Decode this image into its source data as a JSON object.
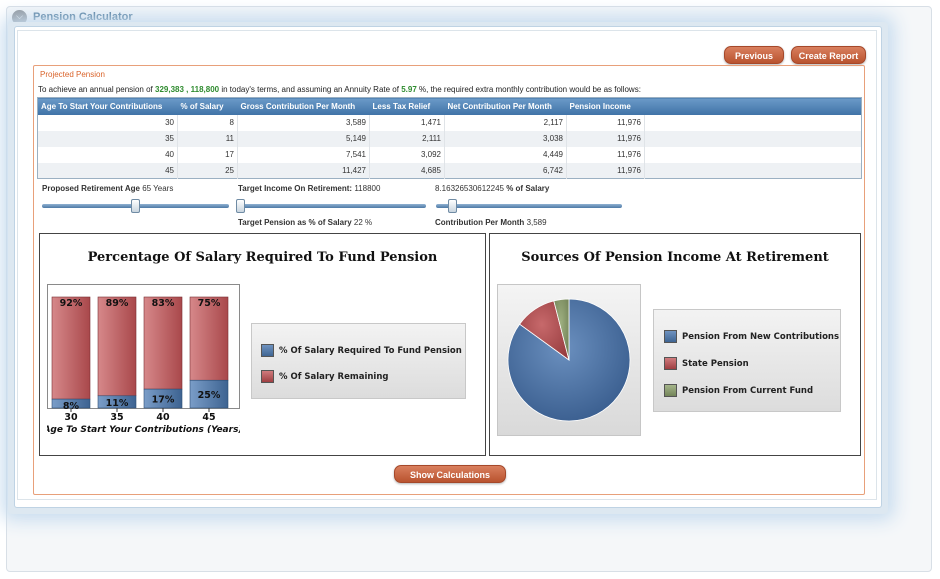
{
  "window": {
    "title": "Pension Calculator"
  },
  "buttons": {
    "previous": "Previous",
    "create_report": "Create Report",
    "show_calculations": "Show Calculations"
  },
  "section": {
    "title": "Projected Pension",
    "intro_prefix": "To achieve an annual pension of",
    "pension_value_1": "329,383",
    "pension_sep": ",",
    "pension_value_2": "118,800",
    "intro_middle": "in today's terms, and assuming an Annuity Rate of",
    "annuity_rate": "5.97",
    "intro_suffix": "%, the required extra monthly contribution would be as follows:"
  },
  "table": {
    "headers": [
      "Age To Start Your Contributions",
      "% of Salary",
      "Gross Contribution Per Month",
      "Less Tax Relief",
      "Net Contribution Per Month",
      "Pension Income"
    ],
    "rows": [
      [
        "30",
        "8",
        "3,589",
        "1,471",
        "2,117",
        "11,976"
      ],
      [
        "35",
        "11",
        "5,149",
        "2,111",
        "3,038",
        "11,976"
      ],
      [
        "40",
        "17",
        "7,541",
        "3,092",
        "4,449",
        "11,976"
      ],
      [
        "45",
        "25",
        "11,427",
        "4,685",
        "6,742",
        "11,976"
      ]
    ]
  },
  "controls": {
    "retirement_age_label": "Proposed Retirement Age",
    "retirement_age_value": "65",
    "retirement_age_unit": "Years",
    "target_income_label": "Target Income On Retirement:",
    "target_income_value": "118800",
    "salary_pct_value": "8.16326530612245",
    "salary_pct_label": "% of Salary",
    "target_pension_label": "Target Pension as % of Salary",
    "target_pension_value": "22",
    "target_pension_unit": "%",
    "contribution_label": "Contribution Per Month",
    "contribution_value": "3,589",
    "slider_retirement_fraction": 0.5,
    "slider_target_fraction": 0.0,
    "slider_contribution_fraction": 0.07
  },
  "colors": {
    "blue": "#4a6f9e",
    "red": "#b65356",
    "green": "#8a9b6d"
  },
  "bar_chart": {
    "title": "Percentage Of Salary Required To Fund Pension",
    "xlabel": "Age To Start Your Contributions (Years)",
    "legend": [
      "% Of Salary Required To Fund Pension",
      "% Of Salary Remaining"
    ]
  },
  "pie_chart": {
    "title": "Sources Of Pension Income At Retirement",
    "legend": [
      "Pension From New Contributions",
      "State Pension",
      "Pension From Current Fund"
    ]
  },
  "chart_data": [
    {
      "type": "bar",
      "title": "Percentage Of Salary Required To Fund Pension",
      "xlabel": "Age To Start Your Contributions (Years)",
      "categories": [
        "30",
        "35",
        "40",
        "45"
      ],
      "series": [
        {
          "name": "% Of Salary Required To Fund Pension",
          "values": [
            8,
            11,
            17,
            25
          ],
          "labels": [
            "8%",
            "11%",
            "17%",
            "25%"
          ]
        },
        {
          "name": "% Of Salary Remaining",
          "values": [
            92,
            89,
            83,
            75
          ],
          "labels": [
            "92%",
            "89%",
            "83%",
            "75%"
          ]
        }
      ],
      "stacked": true,
      "ylim": [
        0,
        100
      ]
    },
    {
      "type": "pie",
      "title": "Sources Of Pension Income At Retirement",
      "labels": [
        "Pension From New Contributions",
        "State Pension",
        "Pension From Current Fund"
      ],
      "values": [
        85,
        11,
        4
      ]
    }
  ]
}
